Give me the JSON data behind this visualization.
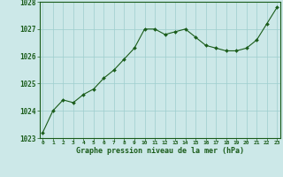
{
  "x": [
    0,
    1,
    2,
    3,
    4,
    5,
    6,
    7,
    8,
    9,
    10,
    11,
    12,
    13,
    14,
    15,
    16,
    17,
    18,
    19,
    20,
    21,
    22,
    23
  ],
  "y": [
    1023.2,
    1024.0,
    1024.4,
    1024.3,
    1024.6,
    1024.8,
    1025.2,
    1025.5,
    1025.9,
    1026.3,
    1027.0,
    1027.0,
    1026.8,
    1026.9,
    1027.0,
    1026.7,
    1026.4,
    1026.3,
    1026.2,
    1026.2,
    1026.3,
    1026.6,
    1027.2,
    1027.8
  ],
  "ylim": [
    1023.0,
    1028.0
  ],
  "yticks": [
    1023,
    1024,
    1025,
    1026,
    1027,
    1028
  ],
  "xticks": [
    0,
    1,
    2,
    3,
    4,
    5,
    6,
    7,
    8,
    9,
    10,
    11,
    12,
    13,
    14,
    15,
    16,
    17,
    18,
    19,
    20,
    21,
    22,
    23
  ],
  "line_color": "#1a5c1a",
  "marker": "D",
  "marker_size": 2.0,
  "bg_color": "#cce8e8",
  "grid_color": "#9ecece",
  "xlabel": "Graphe pression niveau de la mer (hPa)",
  "xlabel_color": "#1a5c1a",
  "tick_color": "#1a5c1a",
  "border_color": "#1a5c1a",
  "xlim_left": -0.3,
  "xlim_right": 23.3
}
